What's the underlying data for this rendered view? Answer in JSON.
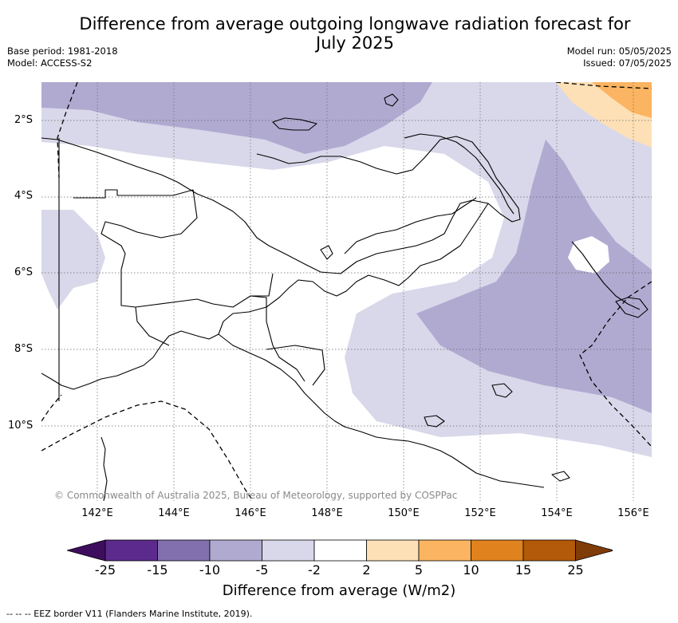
{
  "title_line1": "Difference from average outgoing longwave radiation forecast for",
  "title_line2": "July 2025",
  "meta_left": {
    "line1": "Base period: 1981-2018",
    "line2": "Model: ACCESS-S2"
  },
  "meta_right": {
    "line1": "Model run: 05/05/2025",
    "line2": "Issued: 07/05/2025"
  },
  "lat_labels": [
    "2°S",
    "4°S",
    "6°S",
    "8°S",
    "10°S"
  ],
  "lon_labels": [
    "142°E",
    "144°E",
    "146°E",
    "148°E",
    "150°E",
    "152°E",
    "154°E",
    "156°E"
  ],
  "credit": "© Commonwealth of Australia 2025, Bureau of Meteorology, supported by COSPPac",
  "colorbar": {
    "ticks": [
      "-25",
      "-15",
      "-10",
      "-5",
      "-2",
      "2",
      "5",
      "10",
      "15",
      "25"
    ],
    "colors": [
      "#3f0d5e",
      "#5b2a8c",
      "#8170ad",
      "#b0aad1",
      "#d8d8ea",
      "#ffffff",
      "#fde0b6",
      "#fbb461",
      "#e0821e",
      "#b35a0a",
      "#7f3b08"
    ],
    "title": "Difference from average (W/m2)"
  },
  "footnote": "--  --  -- EEZ border V11 (Flanders Marine Institute, 2019)."
}
